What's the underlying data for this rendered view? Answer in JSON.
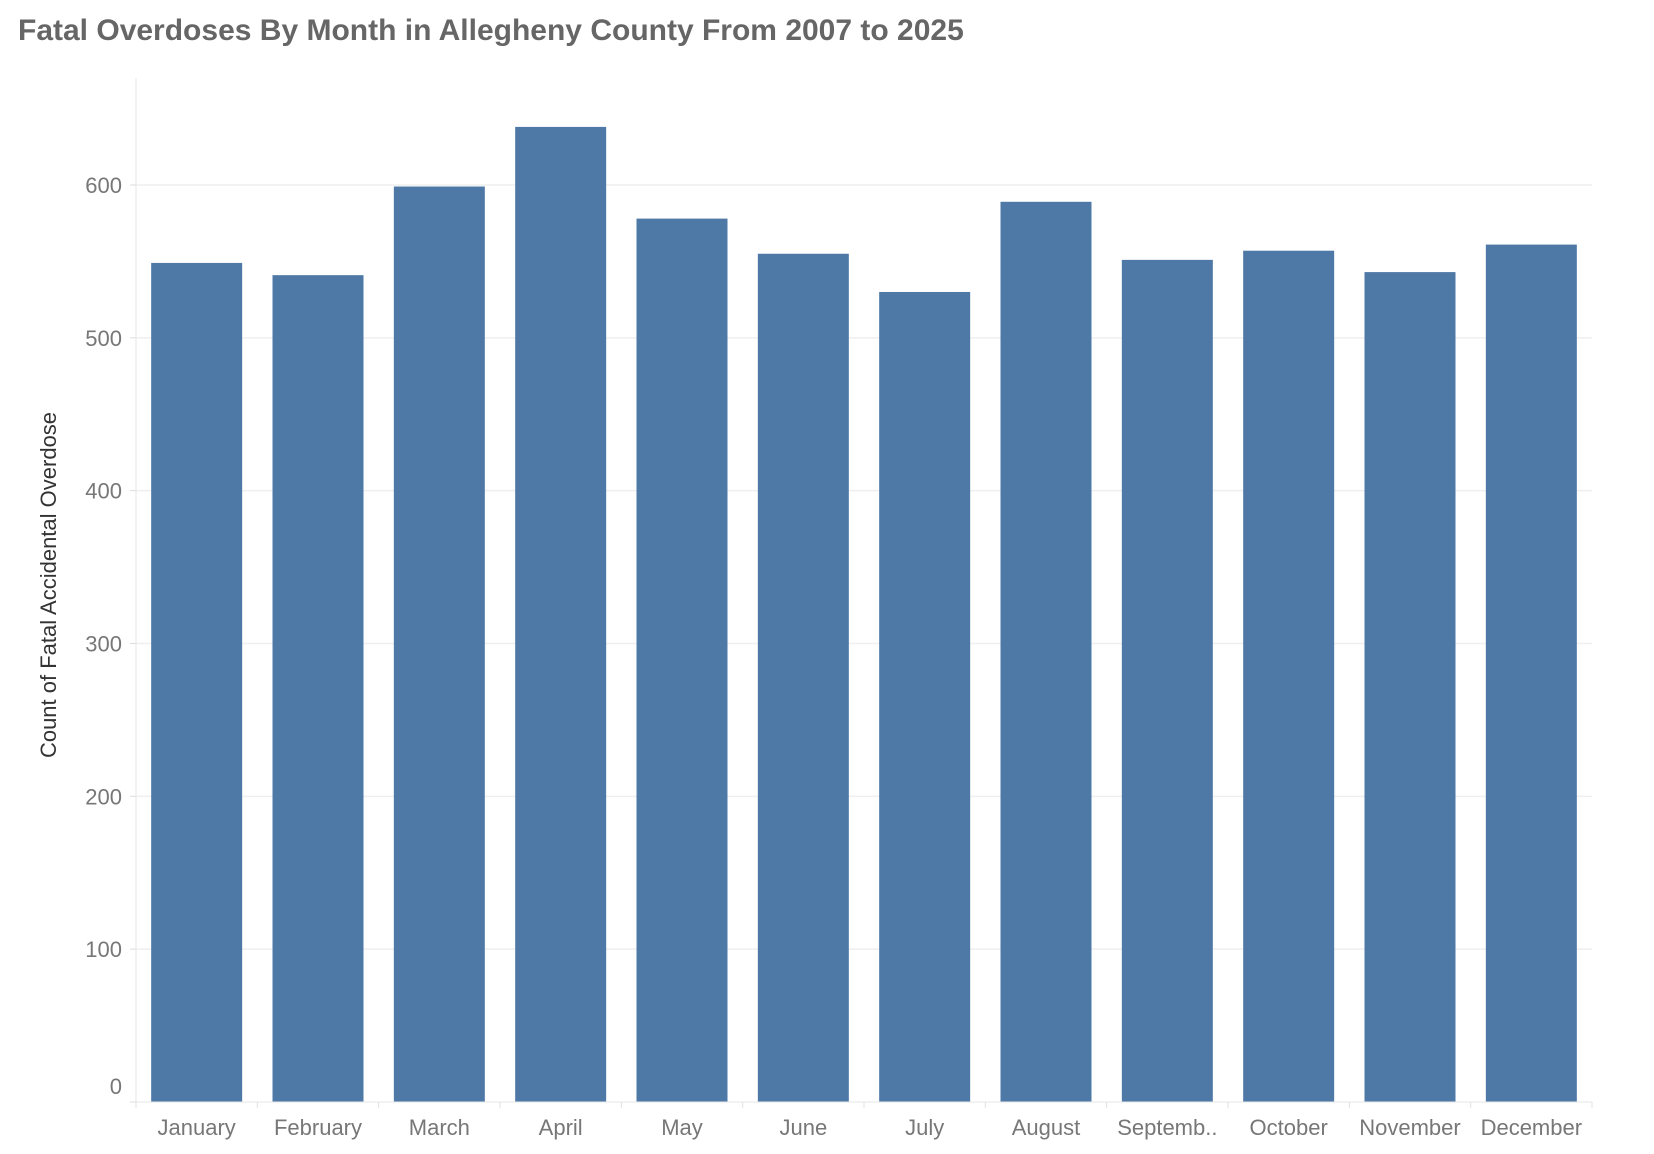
{
  "chart_data": {
    "type": "bar",
    "title": "Fatal Overdoses By Month in Allegheny County From 2007 to 2025",
    "xlabel": "",
    "ylabel": "Count of Fatal Accidental Overdose",
    "categories": [
      "January",
      "February",
      "March",
      "April",
      "May",
      "June",
      "July",
      "August",
      "Septemb..",
      "October",
      "November",
      "December"
    ],
    "values": [
      549,
      541,
      599,
      638,
      578,
      555,
      530,
      589,
      551,
      557,
      543,
      561
    ],
    "ylim": [
      0,
      670
    ],
    "yticks": [
      0,
      100,
      200,
      300,
      400,
      500,
      600
    ],
    "grid": true,
    "legend": "none",
    "bar_color": "#4e79a7"
  }
}
